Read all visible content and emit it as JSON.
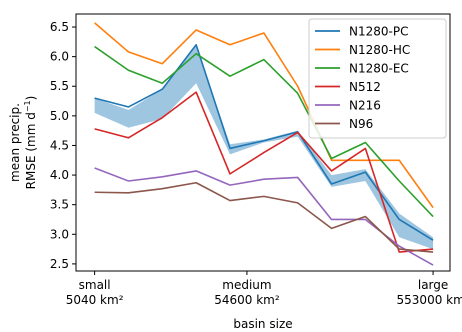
{
  "chart_data": {
    "type": "line",
    "xlabel": "basin size",
    "ylabel_line1": "mean precip.",
    "ylabel_line2_pre": "RMSE (mm d",
    "ylabel_line2_sup": "−1",
    "ylabel_line2_post": ")",
    "x": [
      1,
      2,
      3,
      4,
      5,
      6,
      7,
      8,
      9,
      10,
      11
    ],
    "xlim": [
      0.45,
      11.5
    ],
    "ylim": [
      2.38,
      6.72
    ],
    "yticks": [
      2.5,
      3.0,
      3.5,
      4.0,
      4.5,
      5.0,
      5.5,
      6.0,
      6.5
    ],
    "ytick_labels": [
      "2.5",
      "3.0",
      "3.5",
      "4.0",
      "4.5",
      "5.0",
      "5.5",
      "6.0",
      "6.5"
    ],
    "xticks": [
      {
        "x": 1,
        "line1": "small",
        "line2": "5040 km²"
      },
      {
        "x": 5.5,
        "line1": "medium",
        "line2": "54600 km²"
      },
      {
        "x": 11,
        "line1": "large",
        "line2": "553000 km²"
      }
    ],
    "grid": false,
    "legend_position": "top-right",
    "band": {
      "color": "#7fb3d5",
      "upper": [
        5.3,
        5.1,
        5.45,
        6.2,
        4.52,
        4.6,
        4.75,
        4.0,
        4.1,
        3.35,
        2.95
      ],
      "lower": [
        5.05,
        4.8,
        4.95,
        5.55,
        4.35,
        4.55,
        4.65,
        3.8,
        3.9,
        2.95,
        2.75
      ]
    },
    "series": [
      {
        "name": "N1280-PC",
        "color": "#1f77b4",
        "values": [
          5.3,
          5.15,
          5.45,
          6.2,
          4.45,
          4.58,
          4.73,
          3.85,
          4.05,
          3.25,
          2.9
        ]
      },
      {
        "name": "N1280-HC",
        "color": "#ff7f0e",
        "values": [
          6.57,
          6.08,
          5.88,
          6.45,
          6.2,
          6.4,
          5.5,
          4.25,
          4.25,
          4.25,
          3.45
        ]
      },
      {
        "name": "N1280-EC",
        "color": "#2ca02c",
        "values": [
          6.17,
          5.77,
          5.55,
          6.05,
          5.67,
          5.95,
          5.38,
          4.28,
          4.55,
          3.9,
          3.3
        ]
      },
      {
        "name": "N512",
        "color": "#d62728",
        "values": [
          4.78,
          4.63,
          4.97,
          5.4,
          4.02,
          4.38,
          4.72,
          4.07,
          4.45,
          2.7,
          2.75
        ]
      },
      {
        "name": "N216",
        "color": "#9467bd",
        "values": [
          4.12,
          3.9,
          3.97,
          4.07,
          3.83,
          3.93,
          3.96,
          3.25,
          3.25,
          2.8,
          2.48
        ]
      },
      {
        "name": "N96",
        "color": "#8c564b",
        "values": [
          3.71,
          3.7,
          3.77,
          3.87,
          3.57,
          3.64,
          3.53,
          3.1,
          3.3,
          2.75,
          2.7
        ]
      }
    ]
  }
}
